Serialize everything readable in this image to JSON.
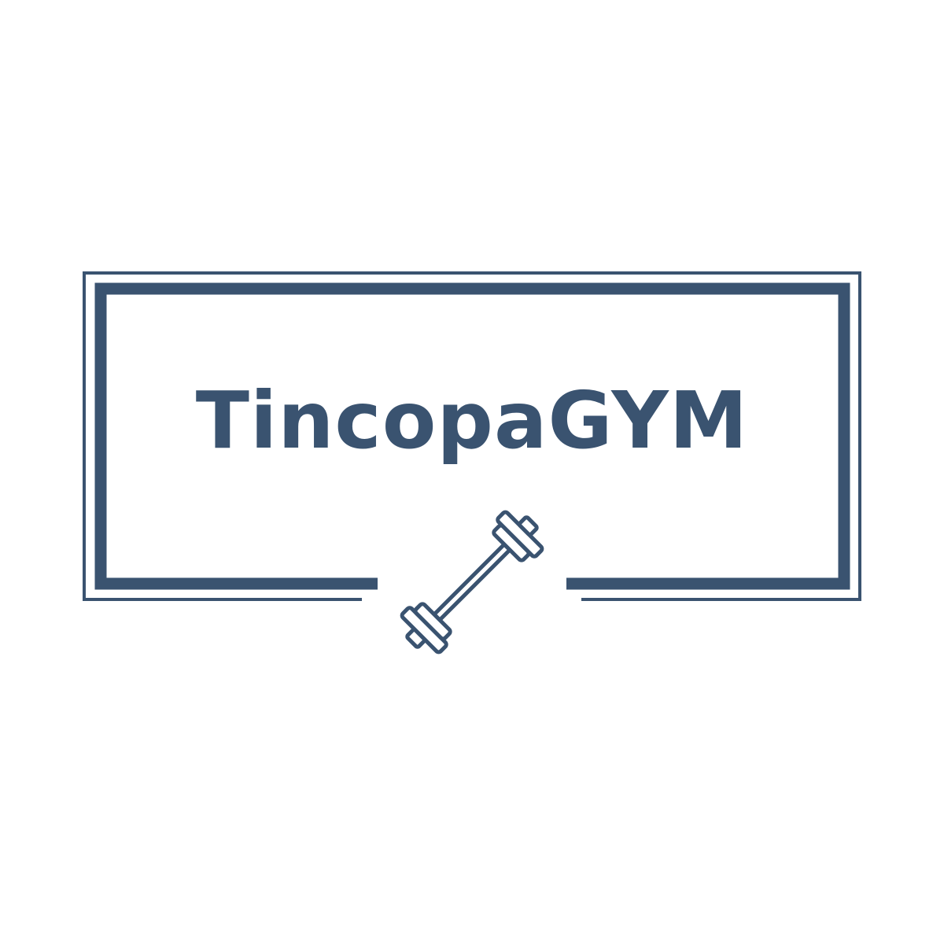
{
  "logo": {
    "brand_name": "TincopaGYM",
    "icon": "dumbbell-icon",
    "colors": {
      "primary": "#3a5370",
      "background": "#ffffff"
    }
  }
}
